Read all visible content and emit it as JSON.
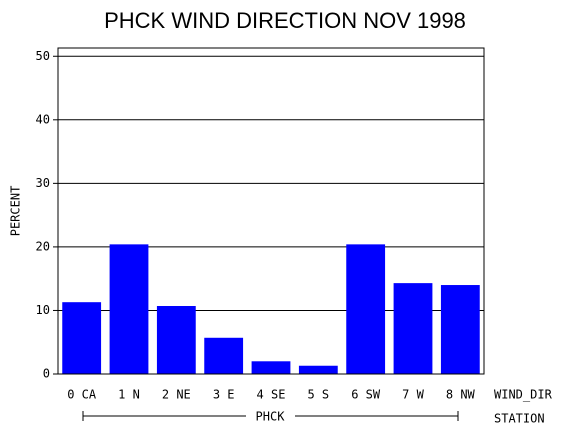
{
  "chart_data": {
    "type": "bar",
    "title": "PHCK WIND DIRECTION NOV 1998",
    "ylabel": "PERCENT",
    "xlabel": "WIND_DIR",
    "group_label": "PHCK",
    "group_axis_label": "STATION",
    "categories": [
      "0 CA",
      "1 N",
      "2 NE",
      "3 E",
      "4 SE",
      "5 S",
      "6 SW",
      "7 W",
      "8 NW"
    ],
    "values": [
      11.3,
      20.4,
      10.7,
      5.7,
      2.0,
      1.3,
      20.4,
      14.3,
      14.0
    ],
    "color": "#0000ff",
    "ylim": [
      0,
      51.3
    ],
    "yticks": [
      0,
      10,
      20,
      30,
      40,
      50
    ],
    "grid": true
  }
}
